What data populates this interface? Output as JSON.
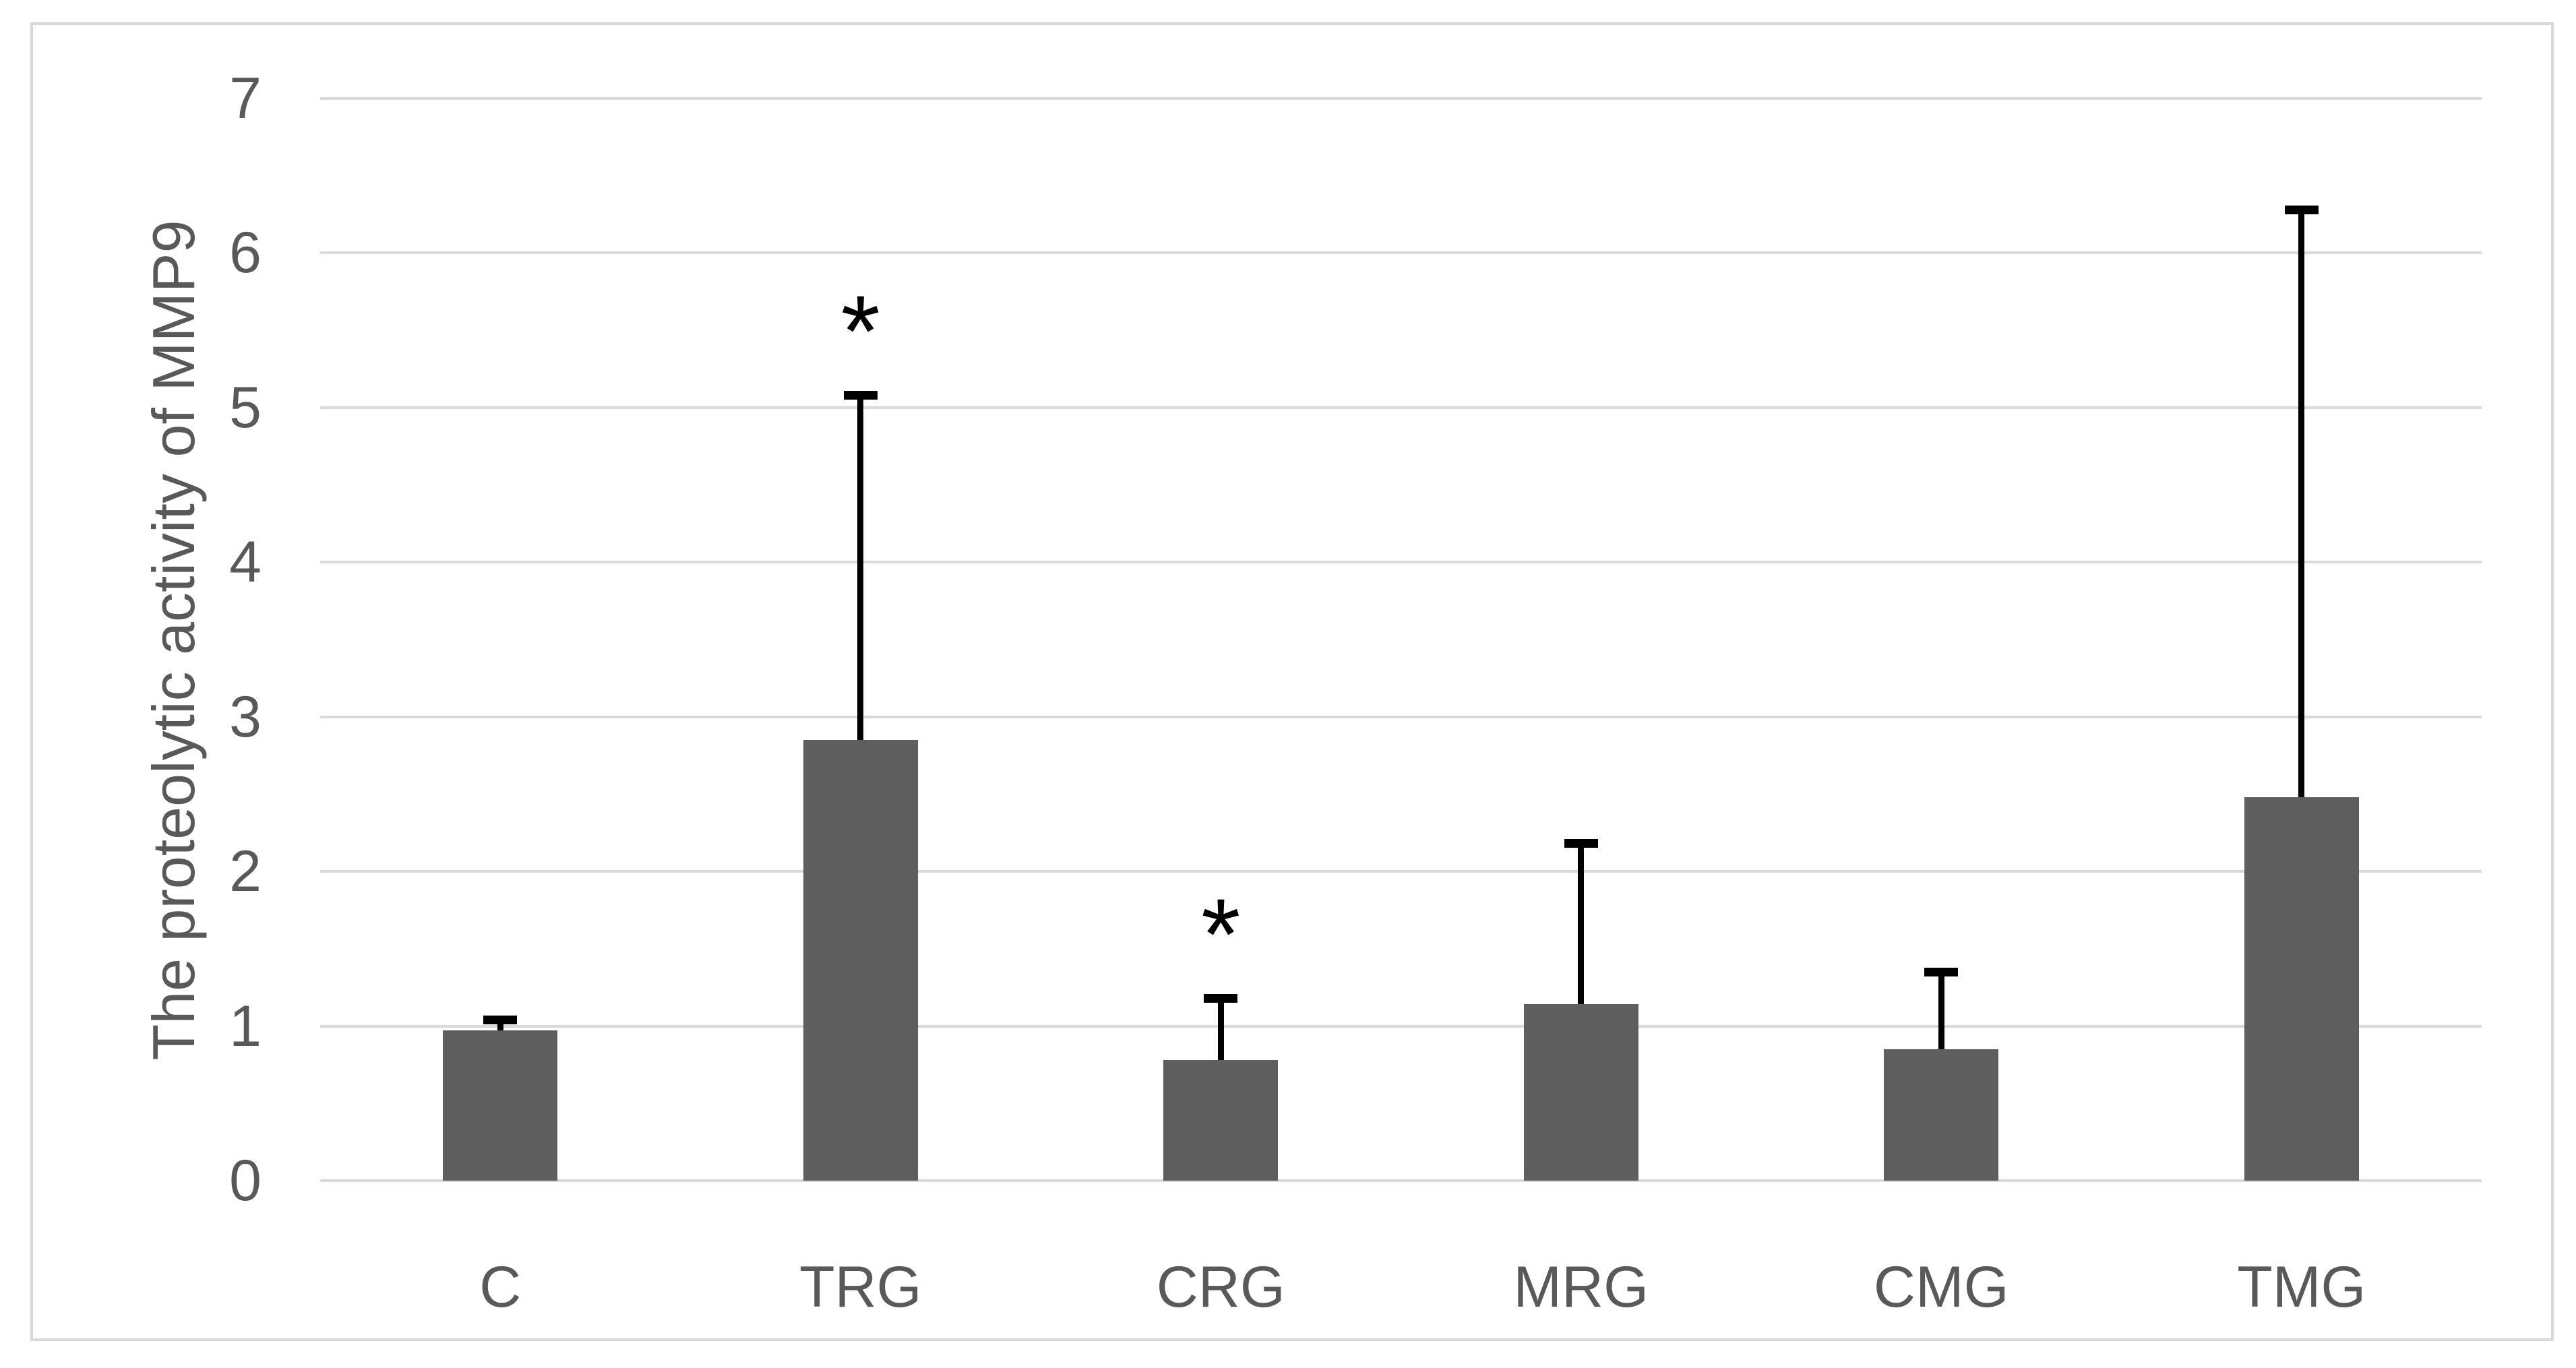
{
  "figure": {
    "background_color": "#ffffff",
    "border_color": "#d9d9d9"
  },
  "chart_data": {
    "type": "bar",
    "title": "",
    "xlabel": "",
    "ylabel": "The proteolytic activity of MMP9",
    "categories": [
      "C",
      "TRG",
      "CRG",
      "MRG",
      "CMG",
      "TMG"
    ],
    "values": [
      0.97,
      2.85,
      0.78,
      1.14,
      0.85,
      2.48
    ],
    "error_plus": [
      0.07,
      2.23,
      0.4,
      1.04,
      0.5,
      3.8
    ],
    "significance": [
      "",
      "*",
      "*",
      "",
      "",
      ""
    ],
    "y_ticks": [
      0,
      1,
      2,
      3,
      4,
      5,
      6,
      7
    ],
    "ylim": [
      0,
      7
    ],
    "grid": true,
    "legend_position": "none",
    "bar_color": "#5e5e5e",
    "gridline_color": "#d9d9d9",
    "error_bar_color": "#000000",
    "tick_label_color": "#595959"
  }
}
